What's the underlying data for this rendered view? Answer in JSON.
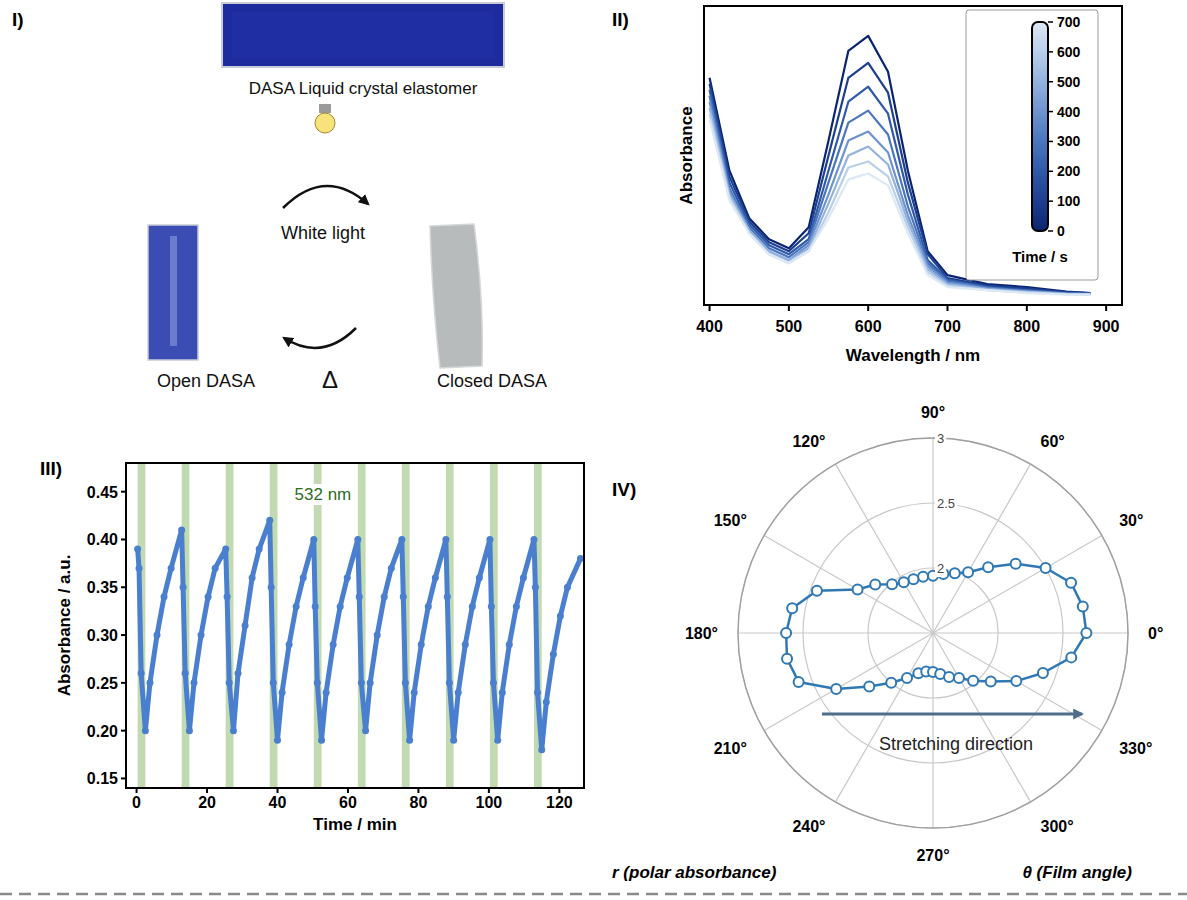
{
  "diagram": {
    "panel": "I)",
    "top_label": "DASA Liquid crystal elastomer",
    "arrow_top": "White light",
    "arrow_bottom": "Δ",
    "left_label": "Open DASA",
    "right_label": "Closed DASA"
  },
  "chart_data": [
    {
      "panel": "II)",
      "type": "line",
      "x": [
        400,
        425,
        450,
        475,
        500,
        525,
        550,
        575,
        600,
        625,
        650,
        675,
        700,
        750,
        800,
        850,
        880
      ],
      "series": [
        {
          "time": 0,
          "color": "#0a2472",
          "values": [
            0.76,
            0.45,
            0.29,
            0.22,
            0.19,
            0.26,
            0.55,
            0.85,
            0.9,
            0.78,
            0.45,
            0.18,
            0.1,
            0.07,
            0.06,
            0.045,
            0.04
          ]
        },
        {
          "time": 100,
          "color": "#1d3f8e",
          "values": [
            0.74,
            0.43,
            0.28,
            0.21,
            0.18,
            0.24,
            0.5,
            0.76,
            0.81,
            0.71,
            0.41,
            0.17,
            0.09,
            0.065,
            0.055,
            0.043,
            0.04
          ]
        },
        {
          "time": 200,
          "color": "#3059a8",
          "values": [
            0.72,
            0.41,
            0.27,
            0.2,
            0.17,
            0.22,
            0.45,
            0.68,
            0.73,
            0.64,
            0.37,
            0.15,
            0.085,
            0.06,
            0.05,
            0.04,
            0.038
          ]
        },
        {
          "time": 300,
          "color": "#4a76bd",
          "values": [
            0.7,
            0.39,
            0.26,
            0.19,
            0.16,
            0.21,
            0.41,
            0.61,
            0.65,
            0.57,
            0.33,
            0.14,
            0.08,
            0.058,
            0.048,
            0.039,
            0.037
          ]
        },
        {
          "time": 400,
          "color": "#6d93cf",
          "values": [
            0.68,
            0.38,
            0.25,
            0.18,
            0.15,
            0.2,
            0.37,
            0.55,
            0.58,
            0.51,
            0.3,
            0.13,
            0.075,
            0.055,
            0.046,
            0.038,
            0.036
          ]
        },
        {
          "time": 500,
          "color": "#93b2de",
          "values": [
            0.66,
            0.37,
            0.25,
            0.18,
            0.15,
            0.19,
            0.34,
            0.5,
            0.53,
            0.47,
            0.28,
            0.12,
            0.07,
            0.053,
            0.044,
            0.037,
            0.036
          ]
        },
        {
          "time": 600,
          "color": "#b9cfea",
          "values": [
            0.64,
            0.36,
            0.24,
            0.17,
            0.14,
            0.18,
            0.31,
            0.46,
            0.48,
            0.43,
            0.26,
            0.11,
            0.065,
            0.05,
            0.042,
            0.036,
            0.035
          ]
        },
        {
          "time": 700,
          "color": "#dde8f5",
          "values": [
            0.62,
            0.35,
            0.24,
            0.17,
            0.14,
            0.18,
            0.29,
            0.42,
            0.44,
            0.4,
            0.24,
            0.1,
            0.06,
            0.05,
            0.04,
            0.035,
            0.035
          ]
        }
      ],
      "xlim": [
        393,
        920
      ],
      "ylim": [
        0,
        1
      ],
      "xticks": [
        400,
        500,
        600,
        700,
        800,
        900
      ],
      "x_label": "Wavelength / nm",
      "y_label": "Absorbance",
      "tick_labels": "x",
      "grid": false,
      "colorbar": {
        "range": [
          0,
          700
        ],
        "ticks": [
          0,
          100,
          200,
          300,
          400,
          500,
          600,
          700
        ],
        "label": "Time / s"
      }
    },
    {
      "panel": "III)",
      "type": "line",
      "x": [
        0.3,
        0.7,
        1.3,
        2.5,
        3.8,
        5.8,
        7.8,
        9.8,
        12.8,
        13.2,
        13.8,
        15.0,
        16.3,
        18.3,
        20.3,
        22.3,
        25.3,
        25.7,
        26.3,
        27.5,
        28.8,
        30.8,
        32.8,
        34.8,
        37.8,
        38.2,
        38.8,
        40.0,
        41.3,
        43.3,
        45.3,
        47.3,
        50.3,
        50.7,
        51.3,
        52.5,
        53.8,
        55.8,
        57.8,
        59.8,
        62.8,
        63.2,
        63.8,
        65.0,
        66.3,
        68.3,
        70.3,
        72.3,
        75.3,
        75.7,
        76.3,
        77.5,
        78.8,
        80.8,
        82.8,
        84.8,
        87.8,
        88.2,
        88.8,
        90.0,
        91.3,
        93.3,
        95.3,
        97.3,
        100.3,
        100.7,
        101.3,
        102.5,
        103.8,
        105.8,
        107.8,
        109.8,
        112.8,
        113.2,
        113.8,
        115.0,
        116.3,
        118.3,
        120.3,
        122.3,
        126
      ],
      "series": [
        {
          "color": "#4a7fcf",
          "marker": "circle",
          "values": [
            0.39,
            0.37,
            0.26,
            0.2,
            0.25,
            0.3,
            0.34,
            0.37,
            0.41,
            0.35,
            0.26,
            0.2,
            0.25,
            0.3,
            0.34,
            0.37,
            0.39,
            0.34,
            0.25,
            0.2,
            0.26,
            0.31,
            0.36,
            0.39,
            0.42,
            0.35,
            0.25,
            0.19,
            0.24,
            0.29,
            0.33,
            0.36,
            0.4,
            0.33,
            0.25,
            0.19,
            0.24,
            0.29,
            0.33,
            0.36,
            0.4,
            0.34,
            0.25,
            0.2,
            0.25,
            0.3,
            0.34,
            0.37,
            0.4,
            0.34,
            0.25,
            0.19,
            0.24,
            0.29,
            0.33,
            0.36,
            0.4,
            0.34,
            0.25,
            0.19,
            0.24,
            0.29,
            0.33,
            0.36,
            0.4,
            0.33,
            0.25,
            0.19,
            0.24,
            0.29,
            0.33,
            0.36,
            0.4,
            0.35,
            0.24,
            0.18,
            0.23,
            0.28,
            0.32,
            0.35,
            0.38
          ]
        }
      ],
      "xlim": [
        -3,
        127
      ],
      "ylim": [
        0.14,
        0.48
      ],
      "xticks": [
        0,
        20,
        40,
        60,
        80,
        100,
        120
      ],
      "yticks": [
        0.15,
        {
          "value": 0.2,
          "label": "0.20"
        },
        0.25,
        {
          "value": 0.3,
          "label": "0.30"
        },
        0.35,
        {
          "value": 0.4,
          "label": "0.40"
        },
        0.45
      ],
      "x_label": "Time / min",
      "y_label": "Absorbance / a.u.",
      "grid": false,
      "shaded_regions": [
        [
          0.3,
          2.5
        ],
        [
          12.8,
          15.0
        ],
        [
          25.3,
          27.5
        ],
        [
          37.8,
          40.0
        ],
        [
          50.3,
          52.5
        ],
        [
          62.8,
          65.0
        ],
        [
          75.3,
          77.5
        ],
        [
          87.8,
          90.0
        ],
        [
          100.3,
          102.5
        ],
        [
          112.8,
          115.0
        ]
      ],
      "annotations": [
        "532 nm"
      ]
    },
    {
      "panel": "IV)",
      "type": "polar",
      "theta": [
        0,
        10,
        20,
        30,
        40,
        50,
        60,
        70,
        80,
        90,
        100,
        110,
        120,
        130,
        140,
        150,
        160,
        170,
        180,
        190,
        200,
        210,
        220,
        230,
        240,
        250,
        260,
        270,
        280,
        290,
        300,
        310,
        320,
        330,
        340,
        350
      ],
      "values": [
        2.68,
        2.67,
        2.63,
        2.5,
        2.33,
        2.16,
        2.04,
        1.99,
        1.96,
        1.94,
        1.94,
        1.94,
        1.95,
        1.99,
        2.08,
        2.17,
        2.45,
        2.6,
        2.63,
        2.64,
        2.6,
        2.36,
        2.14,
        2.0,
        1.9,
        1.83,
        1.8,
        1.8,
        1.82,
        1.86,
        1.9,
        1.98,
        2.08,
        2.24,
        2.4,
        2.58
      ],
      "rlim": [
        1.5,
        3
      ],
      "rticks": [
        2,
        2.5,
        3
      ],
      "thetaticks": [
        {
          "value": 0,
          "label": "0°"
        },
        {
          "value": 30,
          "label": "30°"
        },
        {
          "value": 60,
          "label": "60°"
        },
        {
          "value": 90,
          "label": "90°"
        },
        {
          "value": 120,
          "label": "120°"
        },
        {
          "value": 150,
          "label": "150°"
        },
        {
          "value": 180,
          "label": "180°"
        },
        {
          "value": 210,
          "label": "210°"
        },
        {
          "value": 240,
          "label": "240°"
        },
        {
          "value": 270,
          "label": "270°"
        },
        {
          "value": 300,
          "label": "300°"
        },
        {
          "value": 330,
          "label": "330°"
        }
      ],
      "color": "#2f78b4",
      "marker": "circle",
      "grid": true,
      "r_label": "r (polar absorbance)",
      "theta_label": "θ (Film angle)",
      "annotations": [
        "Stretching direction"
      ]
    }
  ]
}
